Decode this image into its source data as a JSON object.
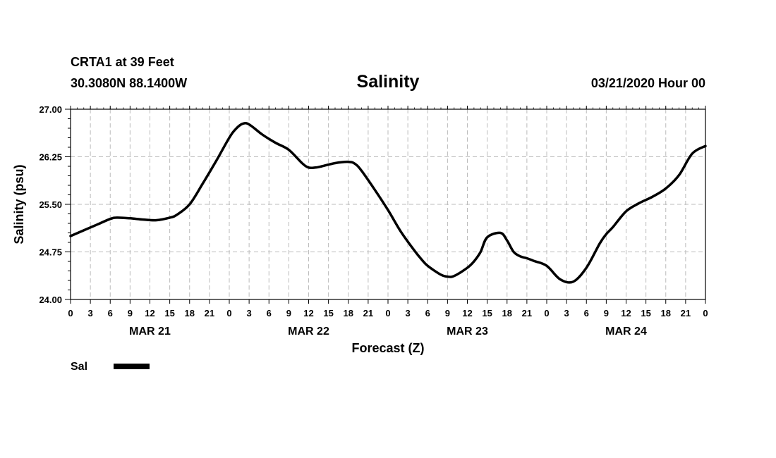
{
  "header": {
    "station": "CRTA1 at 39 Feet",
    "location": "30.3080N 88.1400W",
    "datetime": "03/21/2020 Hour 00"
  },
  "chart_data": {
    "type": "line",
    "title": "Salinity",
    "xlabel": "Forecast (Z)",
    "ylabel": "Salinity (psu)",
    "x_unit": "forecast hour",
    "xlim": [
      0,
      96
    ],
    "ylim": [
      24.0,
      27.0
    ],
    "yticks": [
      "24.00",
      "24.75",
      "25.50",
      "26.25",
      "27.00"
    ],
    "xtick_labels": [
      "0",
      "3",
      "6",
      "9",
      "12",
      "15",
      "18",
      "21",
      "0",
      "3",
      "6",
      "9",
      "12",
      "15",
      "18",
      "21",
      "0",
      "3",
      "6",
      "9",
      "12",
      "15",
      "18",
      "21",
      "0",
      "3",
      "6",
      "9",
      "12",
      "15",
      "18",
      "21",
      "0"
    ],
    "day_labels": [
      {
        "label": "MAR 21",
        "hour": 12
      },
      {
        "label": "MAR 22",
        "hour": 36
      },
      {
        "label": "MAR 23",
        "hour": 60
      },
      {
        "label": "MAR 24",
        "hour": 84
      }
    ],
    "grid": true,
    "legend_position": "bottom-left",
    "series": [
      {
        "name": "Sal",
        "color": "#000000",
        "x": [
          0,
          2,
          4,
          6,
          7,
          9,
          11,
          13,
          15,
          16,
          18,
          20,
          22,
          24,
          25,
          26,
          27,
          29,
          31,
          33,
          35,
          36,
          37,
          38,
          40,
          42,
          43,
          44,
          46,
          48,
          50,
          52,
          53,
          54,
          56,
          57,
          58,
          60,
          61,
          62,
          63,
          65,
          66,
          67,
          68,
          69,
          70,
          72,
          74,
          76,
          78,
          80,
          81,
          82,
          84,
          86,
          88,
          90,
          92,
          94,
          96
        ],
        "y": [
          25.0,
          25.09,
          25.18,
          25.27,
          25.29,
          25.28,
          25.26,
          25.25,
          25.29,
          25.33,
          25.5,
          25.83,
          26.18,
          26.55,
          26.69,
          26.77,
          26.76,
          26.6,
          26.47,
          26.36,
          26.15,
          26.08,
          26.08,
          26.1,
          26.15,
          26.17,
          26.14,
          26.03,
          25.73,
          25.41,
          25.06,
          24.77,
          24.64,
          24.53,
          24.39,
          24.36,
          24.37,
          24.5,
          24.6,
          24.75,
          24.98,
          25.05,
          24.93,
          24.75,
          24.68,
          24.65,
          24.61,
          24.53,
          24.32,
          24.28,
          24.5,
          24.88,
          25.03,
          25.14,
          25.39,
          25.52,
          25.62,
          25.75,
          25.96,
          26.3,
          26.42
        ]
      }
    ]
  }
}
